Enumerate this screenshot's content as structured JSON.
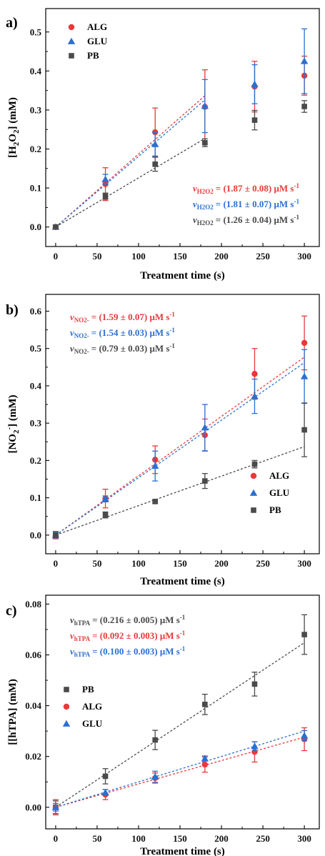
{
  "colors": {
    "ALG": "#e8393a",
    "GLU": "#2b6fd1",
    "PB": "#4a4a4a"
  },
  "chart_data": [
    {
      "type": "scatter",
      "panel_label": "a)",
      "xlabel": "Treatment time (s)",
      "ylabel_parts": [
        "[H",
        "2",
        "O",
        "2",
        "] (mM)"
      ],
      "xlim": [
        -12,
        318
      ],
      "ylim": [
        -0.05,
        0.56
      ],
      "xticks": [
        0,
        50,
        100,
        150,
        200,
        250,
        300
      ],
      "yticks": [
        0.0,
        0.1,
        0.2,
        0.3,
        0.4,
        0.5
      ],
      "ytick_labels": [
        "0.0",
        "0.1",
        "0.2",
        "0.3",
        "0.4",
        "0.5"
      ],
      "legend": {
        "placement": "top-left",
        "entries": [
          "ALG",
          "GLU",
          "PB"
        ]
      },
      "x": [
        0,
        60,
        120,
        180,
        240,
        300
      ],
      "series": [
        {
          "name": "ALG",
          "marker": "circle",
          "values": [
            0.0,
            0.11,
            0.243,
            0.308,
            0.36,
            0.388
          ],
          "errors": [
            0.005,
            0.042,
            0.062,
            0.095,
            0.065,
            0.05
          ],
          "fit": {
            "slope": 0.00187,
            "x_range": [
              0,
              180
            ]
          }
        },
        {
          "name": "GLU",
          "marker": "triangle",
          "values": [
            0.0,
            0.122,
            0.212,
            0.31,
            0.366,
            0.425
          ],
          "errors": [
            0.005,
            0.013,
            0.03,
            0.068,
            0.05,
            0.083
          ],
          "fit": {
            "slope": 0.00181,
            "x_range": [
              0,
              180
            ]
          }
        },
        {
          "name": "PB",
          "marker": "square",
          "values": [
            0.0,
            0.079,
            0.161,
            0.216,
            0.274,
            0.309
          ],
          "errors": [
            0.003,
            0.008,
            0.018,
            0.01,
            0.025,
            0.015
          ],
          "fit": {
            "slope": 0.00126,
            "x_range": [
              0,
              180
            ]
          }
        }
      ],
      "annotations": [
        {
          "sub": "H2O2",
          "value": "= (1.87 ± 0.08) μM s",
          "exp": "-1",
          "series": "ALG"
        },
        {
          "sub": "H2O2",
          "value": "= (1.81 ± 0.07) μM s",
          "exp": "-1",
          "series": "GLU"
        },
        {
          "sub": "H2O2",
          "value": "= (1.26 ± 0.04) μM s",
          "exp": "-1",
          "series": "PB"
        }
      ],
      "grid": false
    },
    {
      "type": "scatter",
      "panel_label": "b)",
      "xlabel": "Treatment time (s)",
      "ylabel_parts": [
        "[NO",
        "2",
        "",
        "-",
        "] (mM)"
      ],
      "xlim": [
        -12,
        318
      ],
      "ylim": [
        -0.05,
        0.645
      ],
      "xticks": [
        0,
        50,
        100,
        150,
        200,
        250,
        300
      ],
      "yticks": [
        0.0,
        0.1,
        0.2,
        0.3,
        0.4,
        0.5,
        0.6
      ],
      "ytick_labels": [
        "0.0",
        "0.1",
        "0.2",
        "0.3",
        "0.4",
        "0.5",
        "0.6"
      ],
      "legend": {
        "placement": "bottom-right",
        "entries": [
          "ALG",
          "GLU",
          "PB"
        ]
      },
      "x": [
        0,
        60,
        120,
        180,
        240,
        300
      ],
      "series": [
        {
          "name": "ALG",
          "marker": "circle",
          "values": [
            0.0,
            0.098,
            0.202,
            0.268,
            0.432,
            0.515
          ],
          "errors": [
            0.01,
            0.025,
            0.037,
            0.043,
            0.068,
            0.072
          ],
          "fit": {
            "slope": 0.00159,
            "x_range": [
              0,
              300
            ]
          }
        },
        {
          "name": "GLU",
          "marker": "triangle",
          "values": [
            0.0,
            0.097,
            0.185,
            0.288,
            0.372,
            0.425
          ],
          "errors": [
            0.008,
            0.008,
            0.04,
            0.062,
            0.046,
            0.072
          ],
          "fit": {
            "slope": 0.00154,
            "x_range": [
              0,
              300
            ]
          }
        },
        {
          "name": "PB",
          "marker": "square",
          "values": [
            0.0,
            0.054,
            0.09,
            0.145,
            0.19,
            0.282
          ],
          "errors": [
            0.003,
            0.008,
            0.005,
            0.02,
            0.01,
            0.072
          ],
          "fit": {
            "slope": 0.00079,
            "x_range": [
              0,
              300
            ]
          }
        }
      ],
      "annotations": [
        {
          "sub": "NO2-",
          "value": "= (1.59 ± 0.07) μM s",
          "exp": "-1",
          "series": "ALG"
        },
        {
          "sub": "NO2-",
          "value": "= (1.54 ± 0.03) μM s",
          "exp": "-1",
          "series": "GLU"
        },
        {
          "sub": "NO2-",
          "value": "= (0.79 ± 0.03) μM s",
          "exp": "-1",
          "series": "PB"
        }
      ],
      "grid": false
    },
    {
      "type": "scatter",
      "panel_label": "c)",
      "xlabel": "Treatment time (s)",
      "ylabel_parts": [
        "[[hTPA] (mM)",
        "",
        "",
        "",
        ""
      ],
      "xlim": [
        -12,
        318
      ],
      "ylim": [
        -0.0085,
        0.0835
      ],
      "xticks": [
        0,
        50,
        100,
        150,
        200,
        250,
        300
      ],
      "yticks": [
        0.0,
        0.02,
        0.04,
        0.06,
        0.08
      ],
      "ytick_labels": [
        "0.00",
        "0.02",
        "0.04",
        "0.06",
        "0.08"
      ],
      "legend": {
        "placement": "middle-left",
        "entries": [
          "PB",
          "ALG",
          "GLU"
        ]
      },
      "x": [
        0,
        60,
        120,
        180,
        240,
        300
      ],
      "series": [
        {
          "name": "PB",
          "marker": "square",
          "values": [
            0.0,
            0.0122,
            0.0265,
            0.0405,
            0.0485,
            0.068
          ],
          "errors": [
            0.0025,
            0.003,
            0.0038,
            0.004,
            0.0047,
            0.0078
          ],
          "fit": {
            "slope": 0.000216,
            "x_range": [
              0,
              300
            ]
          }
        },
        {
          "name": "ALG",
          "marker": "circle",
          "values": [
            0.0,
            0.005,
            0.0115,
            0.0168,
            0.0218,
            0.0268
          ],
          "errors": [
            0.003,
            0.002,
            0.002,
            0.003,
            0.004,
            0.0045
          ],
          "fit": {
            "slope": 9.2e-05,
            "x_range": [
              0,
              300
            ]
          }
        },
        {
          "name": "GLU",
          "marker": "triangle",
          "values": [
            0.0,
            0.0058,
            0.012,
            0.0192,
            0.024,
            0.0282
          ],
          "errors": [
            0.0015,
            0.0012,
            0.0022,
            0.001,
            0.0018,
            0.002
          ],
          "fit": {
            "slope": 0.0001,
            "x_range": [
              0,
              300
            ]
          }
        }
      ],
      "annotations": [
        {
          "sub": "hTPA",
          "value": "= (0.216 ± 0.005) μM s",
          "exp": "-1",
          "series": "PB"
        },
        {
          "sub": "hTPA",
          "value": "= (0.092 ± 0.003) μM s",
          "exp": "-1",
          "series": "ALG"
        },
        {
          "sub": "hTPA",
          "value": "= (0.100 ± 0.003) μM s",
          "exp": "-1",
          "series": "GLU"
        }
      ],
      "grid": false
    }
  ]
}
